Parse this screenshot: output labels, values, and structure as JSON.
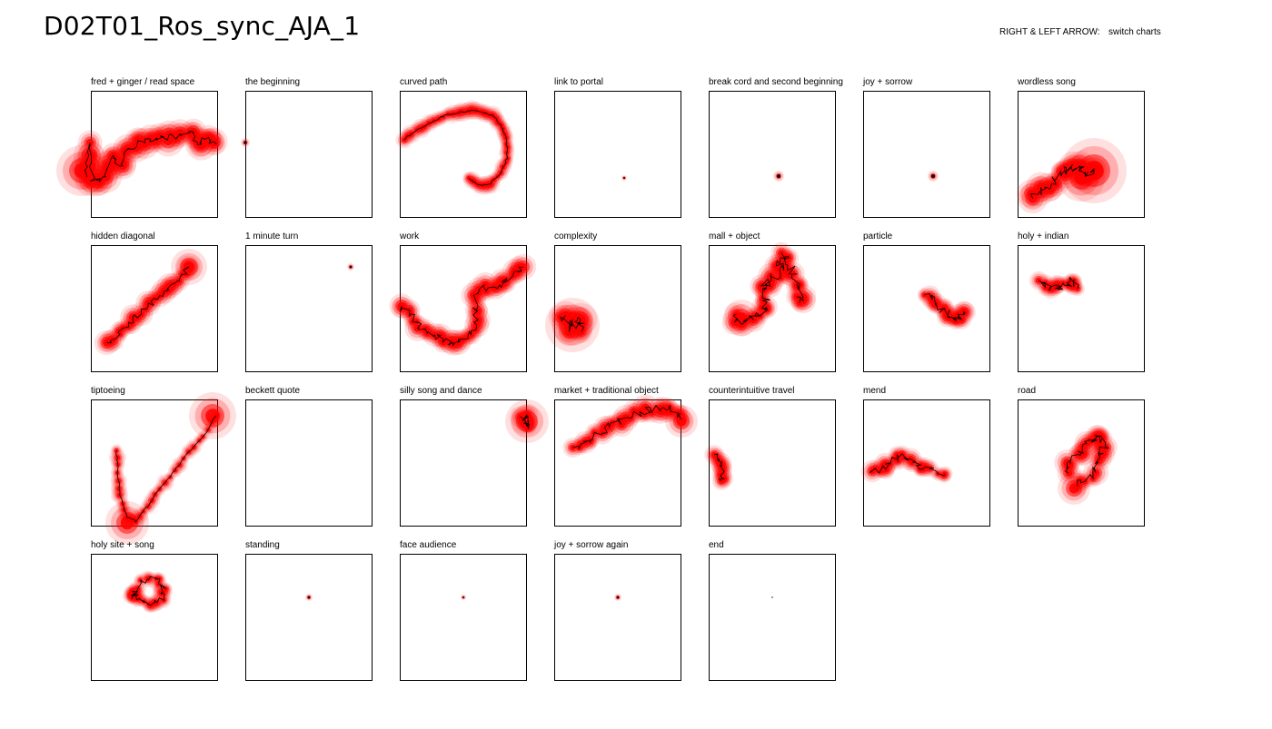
{
  "header": {
    "title": "D02T01_Ros_sync_AJA_1",
    "help_key": "RIGHT & LEFT ARROW:",
    "help_action": "switch charts"
  },
  "charts": [
    {
      "label": "fred + ginger / read space",
      "shape": "fred"
    },
    {
      "label": "the beginning",
      "shape": "dot-left"
    },
    {
      "label": "curved path",
      "shape": "curve"
    },
    {
      "label": "link to portal",
      "shape": "dot-small"
    },
    {
      "label": "break cord and second beginning",
      "shape": "dot-center"
    },
    {
      "label": "joy + sorrow",
      "shape": "dot-center"
    },
    {
      "label": "wordless song",
      "shape": "wordless"
    },
    {
      "label": "hidden diagonal",
      "shape": "diagonal"
    },
    {
      "label": "1 minute turn",
      "shape": "dot-topright"
    },
    {
      "label": "work",
      "shape": "work"
    },
    {
      "label": "complexity",
      "shape": "complexity"
    },
    {
      "label": "mall + object",
      "shape": "mall"
    },
    {
      "label": "particle",
      "shape": "particle"
    },
    {
      "label": "holy + indian",
      "shape": "holy"
    },
    {
      "label": "tiptoeing",
      "shape": "tiptoe"
    },
    {
      "label": "beckett quote",
      "shape": "empty"
    },
    {
      "label": "silly song and dance",
      "shape": "silly"
    },
    {
      "label": "market + traditional object",
      "shape": "market"
    },
    {
      "label": "counterintuitive travel",
      "shape": "counter"
    },
    {
      "label": "mend",
      "shape": "mend"
    },
    {
      "label": "road",
      "shape": "road"
    },
    {
      "label": "holy site + song",
      "shape": "holysite"
    },
    {
      "label": "standing",
      "shape": "dot-mid"
    },
    {
      "label": "face audience",
      "shape": "dot-mid-small"
    },
    {
      "label": "joy + sorrow again",
      "shape": "dot-mid"
    },
    {
      "label": "end",
      "shape": "tiny"
    }
  ],
  "colors": {
    "heat": "#ff0000",
    "trace": "#000000",
    "frame": "#000000"
  }
}
